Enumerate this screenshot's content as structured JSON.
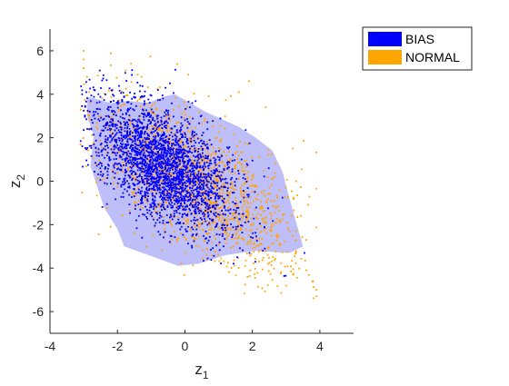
{
  "chart_data": {
    "type": "scatter",
    "title": "",
    "xlabel": "z",
    "xlabel_subscript": "1",
    "ylabel": "z",
    "ylabel_subscript": "2",
    "xlim": [
      -4,
      5
    ],
    "ylim": [
      -7,
      7
    ],
    "xticks": [
      -4,
      -2,
      0,
      2,
      4
    ],
    "yticks": [
      -6,
      -4,
      -2,
      0,
      2,
      4,
      6
    ],
    "legend_position": "top-right outside",
    "series": [
      {
        "name": "BIAS",
        "color": "#0000ff",
        "marker": "dot",
        "cluster": {
          "center": [
            -0.6,
            0.7
          ],
          "spread_major": 1.05,
          "spread_minor": 0.85,
          "correlation": -0.55,
          "count": 2600
        },
        "outline_hull": [
          [
            -2.9,
            3.9
          ],
          [
            -2.2,
            3.6
          ],
          [
            -1.7,
            3.7
          ],
          [
            -1.1,
            3.6
          ],
          [
            -0.6,
            3.9
          ],
          [
            -0.3,
            4.0
          ],
          [
            0.6,
            3.2
          ],
          [
            1.6,
            2.5
          ],
          [
            2.1,
            2.0
          ],
          [
            2.6,
            1.4
          ],
          [
            2.9,
            0.4
          ],
          [
            3.1,
            -0.8
          ],
          [
            3.3,
            -1.9
          ],
          [
            3.5,
            -3.0
          ],
          [
            3.1,
            -3.3
          ],
          [
            2.1,
            -3.2
          ],
          [
            1.2,
            -3.4
          ],
          [
            0.4,
            -3.8
          ],
          [
            -0.2,
            -3.9
          ],
          [
            -0.9,
            -3.5
          ],
          [
            -1.8,
            -3.0
          ],
          [
            -2.0,
            -2.2
          ],
          [
            -2.4,
            -1.2
          ],
          [
            -2.8,
            0.7
          ],
          [
            -2.7,
            2.1
          ],
          [
            -2.9,
            3.0
          ]
        ],
        "outline_hull_color": "#6f6ff0"
      },
      {
        "name": "NORMAL",
        "color": "#ffa500",
        "marker": "dot",
        "cluster": {
          "center": [
            0.3,
            -0.1
          ],
          "spread_major": 1.45,
          "spread_minor": 1.05,
          "correlation": -0.6,
          "count": 1700
        },
        "extreme_points": [
          [
            -3.0,
            6.0
          ],
          [
            -3.0,
            5.6
          ],
          [
            -3.0,
            5.2
          ],
          [
            -2.9,
            4.8
          ],
          [
            -1.6,
            5.4
          ],
          [
            -1.4,
            4.9
          ],
          [
            3.9,
            -5.0
          ],
          [
            3.8,
            -4.6
          ],
          [
            3.9,
            -5.3
          ],
          [
            3.6,
            -4.1
          ],
          [
            3.2,
            -4.3
          ],
          [
            3.0,
            -4.8
          ],
          [
            1.9,
            4.6
          ],
          [
            1.6,
            4.1
          ],
          [
            0.1,
            4.9
          ],
          [
            2.4,
            3.4
          ],
          [
            3.2,
            1.5
          ],
          [
            3.3,
            0.0
          ],
          [
            3.6,
            -2.7
          ],
          [
            -2.2,
            -2.1
          ]
        ]
      }
    ]
  }
}
